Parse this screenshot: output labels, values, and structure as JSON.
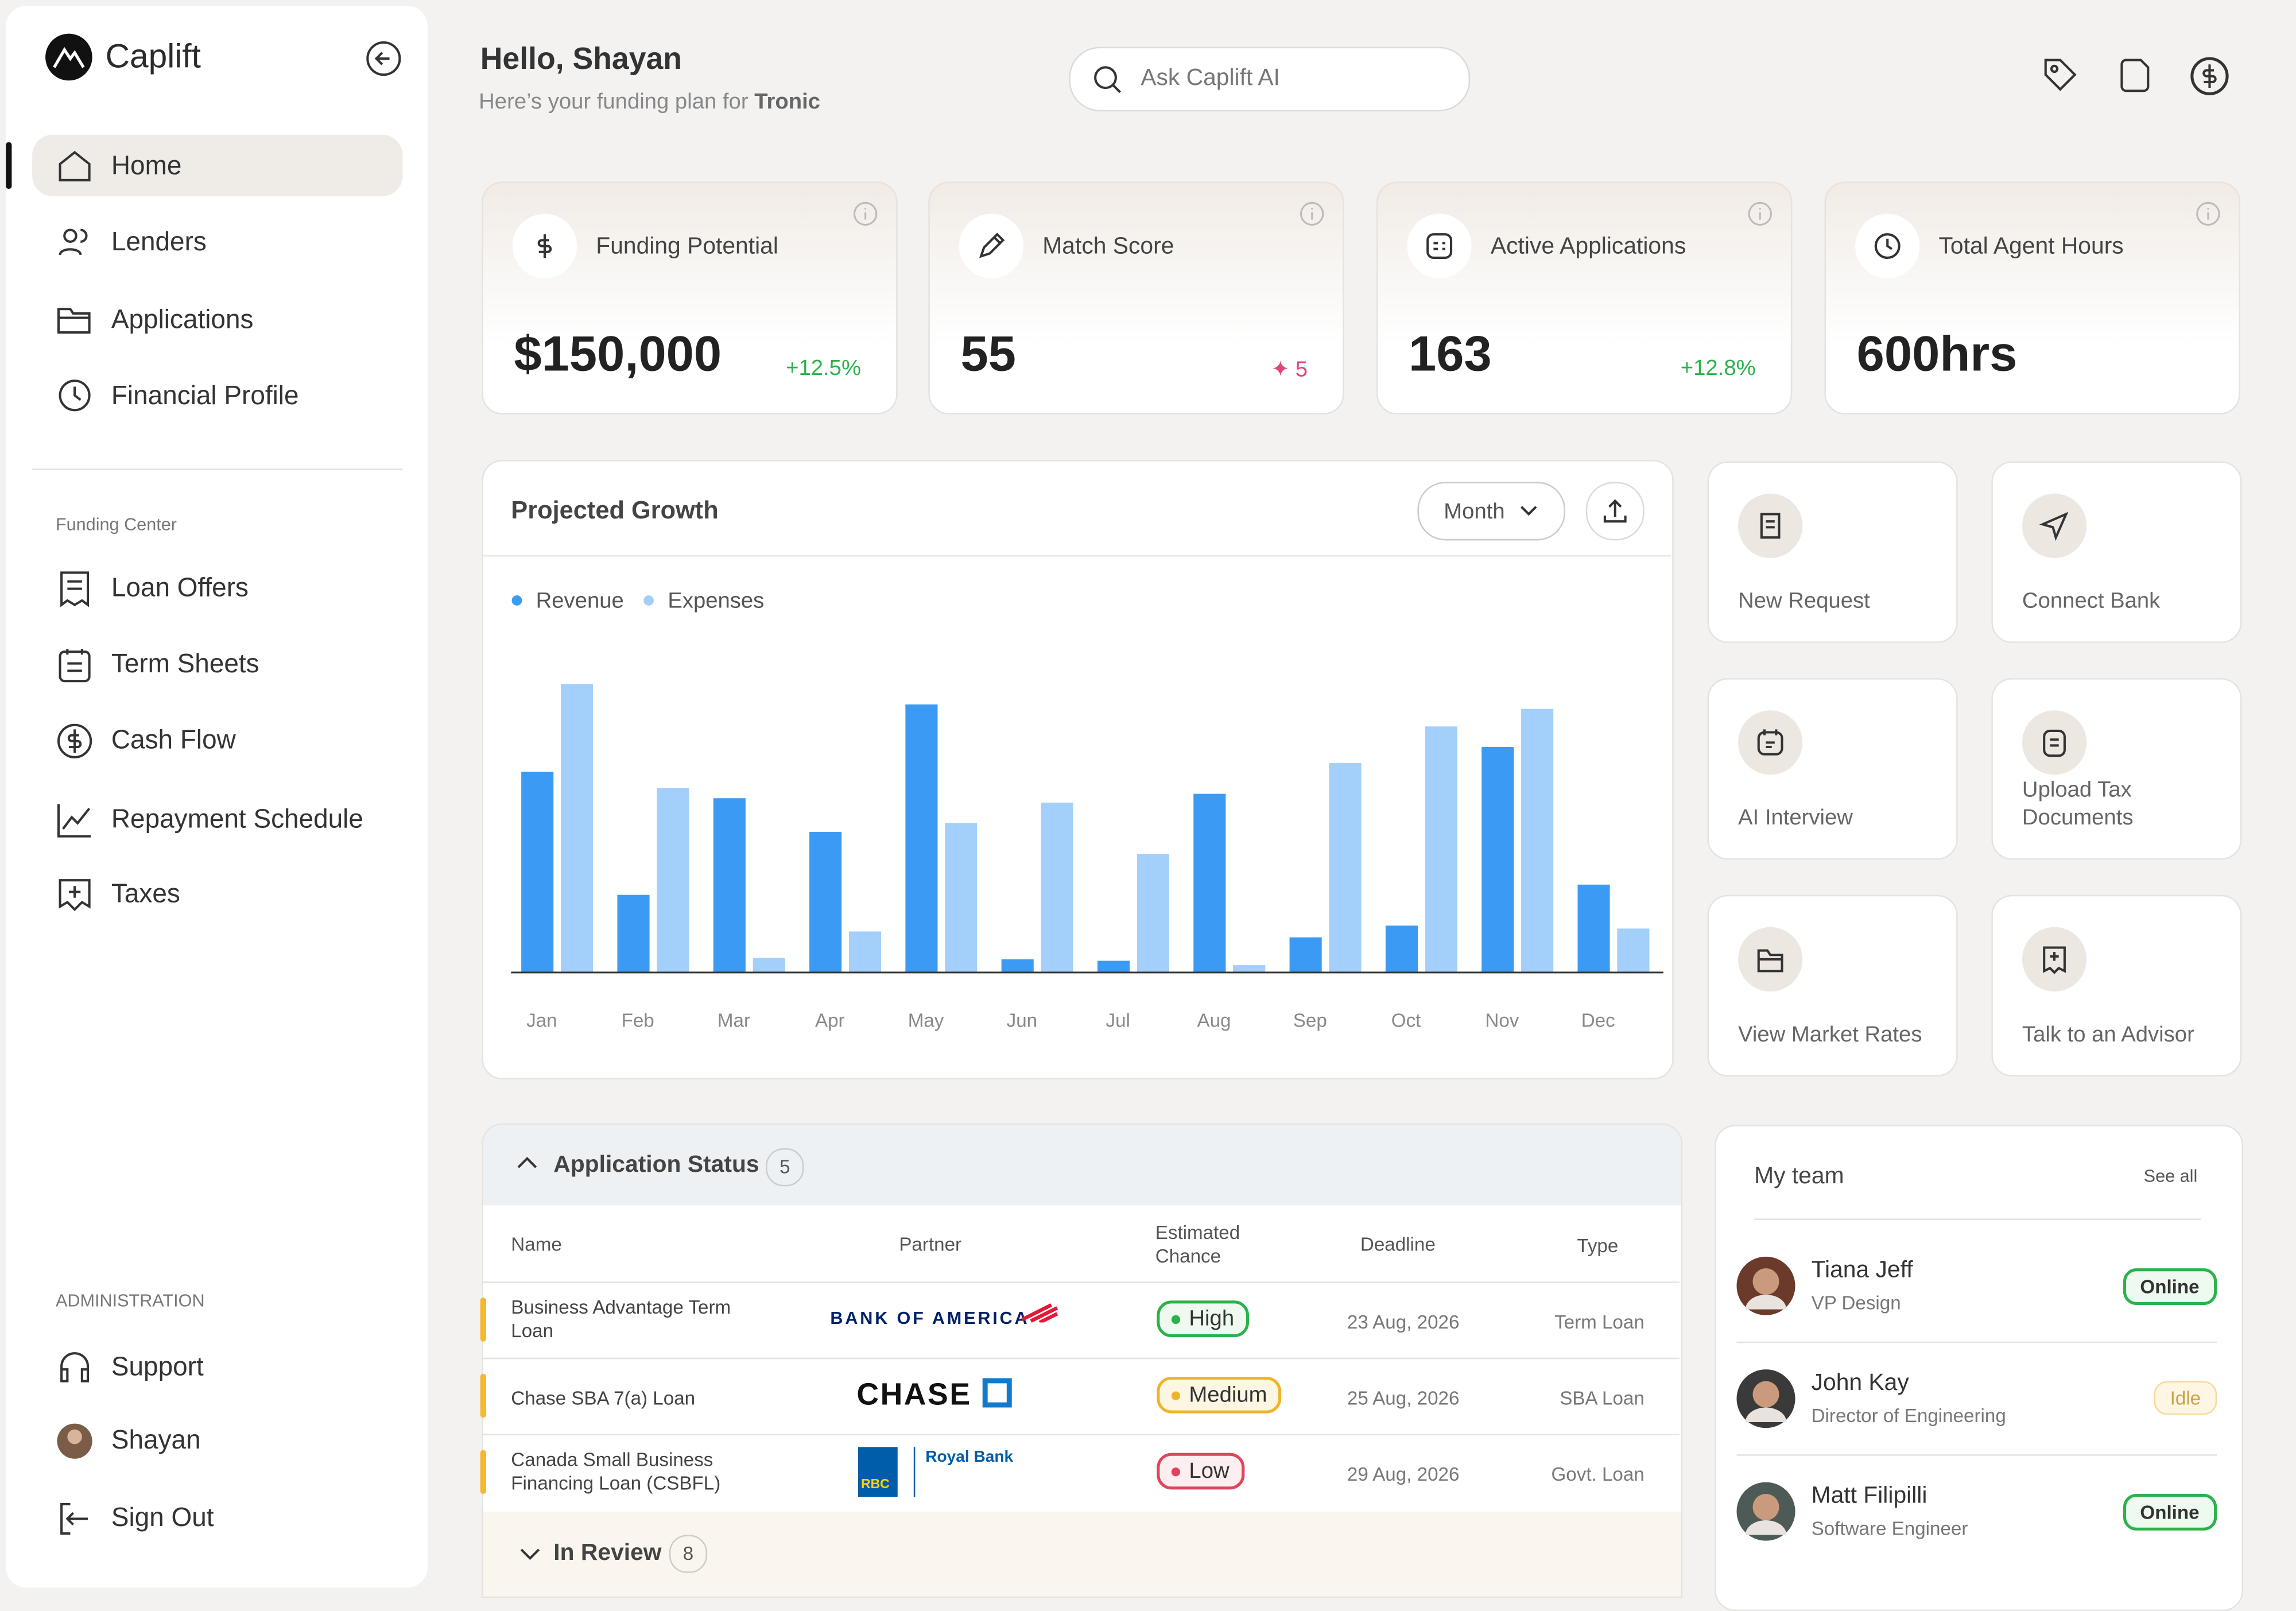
{
  "sidebar": {
    "brand": "Caplift",
    "nav": [
      "Home",
      "Lenders",
      "Applications",
      "Financial Profile"
    ],
    "section_label": "Funding Center",
    "funding": [
      "Loan Offers",
      "Term Sheets",
      "Cash Flow",
      "Repayment Schedule",
      "Taxes"
    ],
    "admin_label": "ADMINISTRATION",
    "admin": [
      "Support",
      "Shayan",
      "Sign Out"
    ]
  },
  "header": {
    "greeting": "Hello, Shayan",
    "subtitle": "Here’s your funding plan for",
    "company": "Tronic",
    "search_placeholder": "Ask Caplift AI"
  },
  "stats": [
    {
      "label": "Funding Potential",
      "value": "$150,000",
      "change": "+12.5%"
    },
    {
      "label": "Match Score",
      "value": "55",
      "change": "5"
    },
    {
      "label": "Active Applications",
      "value": "163",
      "change": "+12.8%"
    },
    {
      "label": "Total Agent Hours",
      "value": "600hrs"
    }
  ],
  "chart_data": {
    "type": "bar",
    "title": "Projected Growth",
    "period": "Month",
    "categories": [
      "Jan",
      "Feb",
      "Mar",
      "Apr",
      "May",
      "Jun",
      "Jul",
      "Aug",
      "Sep",
      "Oct",
      "Nov",
      "Dec"
    ],
    "series": [
      {
        "name": "Revenue",
        "color": "#3b9bf4",
        "values": [
          137,
          53,
          119,
          96,
          183,
          9,
          8,
          122,
          24,
          32,
          154,
          60
        ]
      },
      {
        "name": "Expenses",
        "color": "#a3cffb",
        "values": [
          197,
          126,
          10,
          28,
          102,
          116,
          81,
          5,
          143,
          168,
          180,
          30
        ]
      }
    ],
    "ylim": [
      0,
      220
    ]
  },
  "actions": [
    "New Request",
    "Connect Bank",
    "AI Interview",
    "Upload Tax Documents",
    "View Market Rates",
    "Talk to an Advisor"
  ],
  "applications": {
    "title": "Application Status",
    "count": 5,
    "columns": [
      "Name",
      "Partner",
      "Estimated Chance",
      "Deadline",
      "Type"
    ],
    "rows": [
      {
        "name": "Business Advantage Term Loan",
        "partner": "BANK OF AMERICA",
        "chance": "High",
        "deadline": "23 Aug, 2026",
        "type": "Term Loan"
      },
      {
        "name": "Chase SBA 7(a) Loan",
        "partner": "CHASE",
        "chance": "Medium",
        "deadline": "25 Aug, 2026",
        "type": "SBA Loan"
      },
      {
        "name": "Canada Small Business Financing Loan (CSBFL)",
        "partner": "Royal Bank",
        "partner_badge": "RBC",
        "chance": "Low",
        "deadline": "29 Aug, 2026",
        "type": "Govt. Loan"
      }
    ],
    "in_review": "In Review",
    "in_review_count": 8
  },
  "team": {
    "title": "My team",
    "see_all": "See all",
    "members": [
      {
        "name": "Tiana Jeff",
        "role": "VP Design",
        "status": "Online"
      },
      {
        "name": "John Kay",
        "role": "Director of Engineering",
        "status": "Idle"
      },
      {
        "name": "Matt Filipilli",
        "role": "Software Engineer",
        "status": "Online"
      }
    ]
  }
}
